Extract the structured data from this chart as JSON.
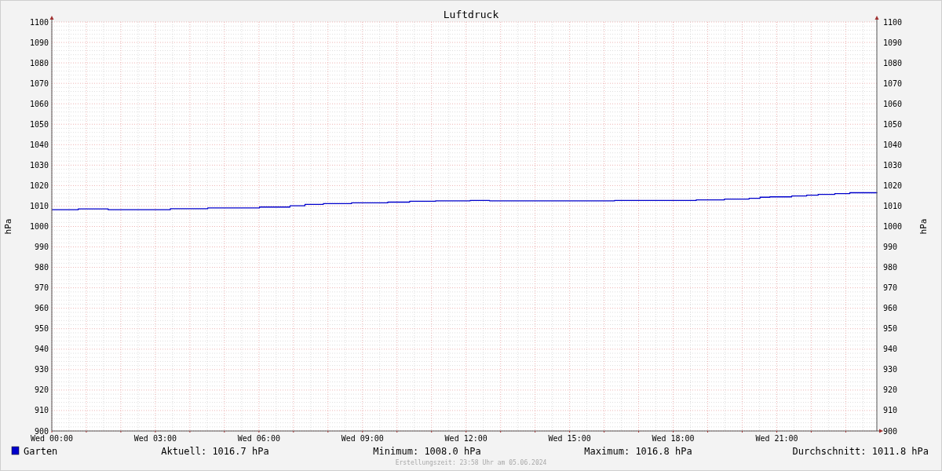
{
  "chart_data": {
    "type": "step",
    "title": "Luftdruck",
    "ylabel": "hPa",
    "y2label": "hPa",
    "x": [
      "2024-06-05T00:00",
      "2024-06-05T00:46",
      "2024-06-05T01:38",
      "2024-06-05T03:26",
      "2024-06-05T04:31",
      "2024-06-05T06:01",
      "2024-06-05T06:54",
      "2024-06-05T07:20",
      "2024-06-05T07:52",
      "2024-06-05T08:41",
      "2024-06-05T09:44",
      "2024-06-05T10:22",
      "2024-06-05T11:07",
      "2024-06-05T12:07",
      "2024-06-05T12:41",
      "2024-06-05T16:18",
      "2024-06-05T18:40",
      "2024-06-05T19:29",
      "2024-06-05T20:12",
      "2024-06-05T20:31",
      "2024-06-05T20:48",
      "2024-06-05T21:26",
      "2024-06-05T21:52",
      "2024-06-05T22:12",
      "2024-06-05T22:41",
      "2024-06-05T23:07",
      "2024-06-05T23:54"
    ],
    "series": [
      {
        "name": "Garten",
        "color": "#0000cc",
        "values": [
          1008.2,
          1008.6,
          1008.2,
          1008.7,
          1009.1,
          1009.5,
          1010.1,
          1010.8,
          1011.2,
          1011.6,
          1011.9,
          1012.3,
          1012.5,
          1012.7,
          1012.5,
          1012.7,
          1013.0,
          1013.4,
          1013.8,
          1014.3,
          1014.5,
          1014.9,
          1015.3,
          1015.7,
          1016.1,
          1016.5,
          1016.7
        ]
      }
    ],
    "xlim": [
      "2024-06-05T00:00",
      "2024-06-05T23:54"
    ],
    "xticks": [
      {
        "value": "2024-06-05T00:00",
        "label": "Wed 00:00"
      },
      {
        "value": "2024-06-05T01:00",
        "label": null
      },
      {
        "value": "2024-06-05T02:00",
        "label": null
      },
      {
        "value": "2024-06-05T03:00",
        "label": "Wed 03:00"
      },
      {
        "value": "2024-06-05T04:00",
        "label": null
      },
      {
        "value": "2024-06-05T05:00",
        "label": null
      },
      {
        "value": "2024-06-05T06:00",
        "label": "Wed 06:00"
      },
      {
        "value": "2024-06-05T07:00",
        "label": null
      },
      {
        "value": "2024-06-05T08:00",
        "label": null
      },
      {
        "value": "2024-06-05T09:00",
        "label": "Wed 09:00"
      },
      {
        "value": "2024-06-05T10:00",
        "label": null
      },
      {
        "value": "2024-06-05T11:00",
        "label": null
      },
      {
        "value": "2024-06-05T12:00",
        "label": "Wed 12:00"
      },
      {
        "value": "2024-06-05T13:00",
        "label": null
      },
      {
        "value": "2024-06-05T14:00",
        "label": null
      },
      {
        "value": "2024-06-05T15:00",
        "label": "Wed 15:00"
      },
      {
        "value": "2024-06-05T16:00",
        "label": null
      },
      {
        "value": "2024-06-05T17:00",
        "label": null
      },
      {
        "value": "2024-06-05T18:00",
        "label": "Wed 18:00"
      },
      {
        "value": "2024-06-05T19:00",
        "label": null
      },
      {
        "value": "2024-06-05T20:00",
        "label": null
      },
      {
        "value": "2024-06-05T21:00",
        "label": "Wed 21:00"
      },
      {
        "value": "2024-06-05T22:00",
        "label": null
      },
      {
        "value": "2024-06-05T23:00",
        "label": null
      }
    ],
    "ylim": [
      900,
      1100
    ],
    "yticks": [
      900,
      910,
      920,
      930,
      940,
      950,
      960,
      970,
      980,
      990,
      1000,
      1010,
      1020,
      1030,
      1040,
      1050,
      1060,
      1070,
      1080,
      1090,
      1100
    ],
    "y2lim": [
      900,
      1100
    ],
    "y2ticks": [
      900,
      910,
      920,
      930,
      940,
      950,
      960,
      970,
      980,
      990,
      1000,
      1010,
      1020,
      1030,
      1040,
      1050,
      1060,
      1070,
      1080,
      1090,
      1100
    ],
    "grid": true,
    "legend": "bottom",
    "annotations": [
      "Aktuell: 1016.7 hPa",
      "Minimum: 1008.0 hPa",
      "Maximum: 1016.8 hPa",
      "Durchschnitt: 1011.8 hPa",
      "Erstellungszeit: 23:58 Uhr am 05.06.2024"
    ]
  }
}
